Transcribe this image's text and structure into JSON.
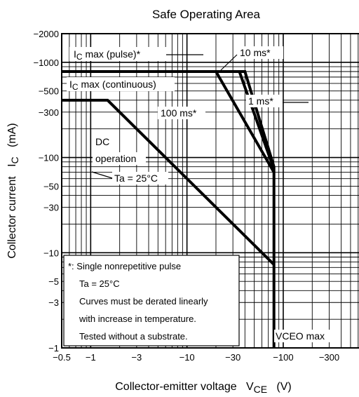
{
  "chart_data": {
    "type": "line",
    "title": "Safe Operating Area",
    "xlabel": "Collector-emitter voltage",
    "xlabel_symbol": "V",
    "xlabel_sub": "CE",
    "xlabel_unit": "(V)",
    "ylabel": "Collector current",
    "ylabel_symbol": "I",
    "ylabel_sub": "C",
    "ylabel_unit": "(mA)",
    "x_scale": "log",
    "y_scale": "log",
    "xlim": [
      -0.5,
      -700
    ],
    "ylim": [
      -1,
      -2000
    ],
    "x_ticks": [
      {
        "v": -0.5,
        "label": "−0.5"
      },
      {
        "v": -1,
        "label": "−1"
      },
      {
        "v": -3,
        "label": "−3"
      },
      {
        "v": -10,
        "label": "−10"
      },
      {
        "v": -30,
        "label": "−30"
      },
      {
        "v": -100,
        "label": "−100"
      },
      {
        "v": -300,
        "label": "−300"
      }
    ],
    "y_ticks": [
      {
        "v": -1,
        "label": "−1"
      },
      {
        "v": -3,
        "label": "−3"
      },
      {
        "v": -5,
        "label": "−5"
      },
      {
        "v": -10,
        "label": "−10"
      },
      {
        "v": -30,
        "label": "−30"
      },
      {
        "v": -50,
        "label": "−50"
      },
      {
        "v": -100,
        "label": "−100"
      },
      {
        "v": -300,
        "label": "−300"
      },
      {
        "v": -500,
        "label": "−500"
      },
      {
        "v": -1000,
        "label": "−1000"
      },
      {
        "v": -2000,
        "label": "−2000"
      }
    ],
    "grid": true,
    "series": [
      {
        "name": "10 ms*",
        "points": [
          [
            -0.5,
            -800
          ],
          [
            -40,
            -800
          ],
          [
            -80,
            -80
          ],
          [
            -80,
            -1
          ]
        ]
      },
      {
        "name": "1 ms*",
        "points": [
          [
            -0.5,
            -800
          ],
          [
            -35,
            -800
          ],
          [
            -80,
            -75
          ]
        ]
      },
      {
        "name": "100 ms*",
        "points": [
          [
            -0.5,
            -800
          ],
          [
            -20,
            -800
          ],
          [
            -80,
            -70
          ]
        ]
      },
      {
        "name": "DC operation",
        "points": [
          [
            -0.5,
            -400
          ],
          [
            -1.5,
            -400
          ],
          [
            -80,
            -7.5
          ]
        ]
      }
    ],
    "annotations": [
      {
        "text": "I",
        "sub": "C",
        "rest": " max (pulse)*"
      },
      {
        "text": "I",
        "sub": "C",
        "rest": " max (continuous)"
      },
      {
        "text": "10 ms*"
      },
      {
        "text": "1 ms*"
      },
      {
        "text": "100 ms*"
      },
      {
        "text": "DC"
      },
      {
        "text": "operation"
      },
      {
        "text": "Ta = 25°C"
      },
      {
        "text": "VCEO max"
      }
    ],
    "note": [
      "*: Single nonrepetitive pulse",
      "Ta = 25°C",
      "Curves must be derated linearly",
      "with increase in temperature.",
      "Tested without a substrate."
    ]
  }
}
